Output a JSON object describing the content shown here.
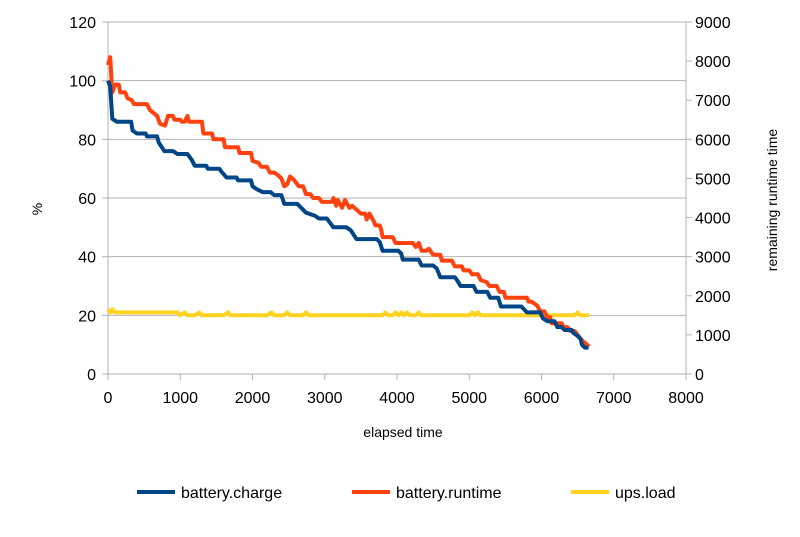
{
  "chart_data": {
    "type": "line",
    "xlabel": "elapsed time",
    "ylabel_left": "%",
    "ylabel_right": "remaining runtime time",
    "xlim": [
      0,
      8000
    ],
    "ylim_left": [
      0,
      120
    ],
    "ylim_right": [
      0,
      9000
    ],
    "x_ticks": [
      0,
      1000,
      2000,
      3000,
      4000,
      5000,
      6000,
      7000,
      8000
    ],
    "y_left_ticks": [
      0,
      20,
      40,
      60,
      80,
      100,
      120
    ],
    "y_right_ticks": [
      0,
      1000,
      2000,
      3000,
      4000,
      5000,
      6000,
      7000,
      8000,
      9000
    ],
    "grid": "horizontal",
    "legend_position": "bottom",
    "series": [
      {
        "name": "battery.charge",
        "axis": "left",
        "color": "#004586",
        "points": [
          [
            0,
            100
          ],
          [
            30,
            98
          ],
          [
            60,
            87
          ],
          [
            120,
            86
          ],
          [
            200,
            86
          ],
          [
            320,
            86
          ],
          [
            340,
            83
          ],
          [
            400,
            82
          ],
          [
            520,
            82
          ],
          [
            540,
            81
          ],
          [
            680,
            81
          ],
          [
            700,
            79
          ],
          [
            780,
            76
          ],
          [
            900,
            76
          ],
          [
            960,
            75
          ],
          [
            1100,
            75
          ],
          [
            1160,
            73
          ],
          [
            1200,
            71
          ],
          [
            1360,
            71
          ],
          [
            1380,
            70
          ],
          [
            1540,
            70
          ],
          [
            1570,
            69
          ],
          [
            1640,
            67
          ],
          [
            1780,
            67
          ],
          [
            1800,
            66
          ],
          [
            1980,
            66
          ],
          [
            2000,
            64
          ],
          [
            2060,
            63
          ],
          [
            2140,
            62
          ],
          [
            2250,
            62
          ],
          [
            2300,
            61
          ],
          [
            2400,
            61
          ],
          [
            2440,
            58
          ],
          [
            2620,
            58
          ],
          [
            2660,
            57
          ],
          [
            2740,
            55
          ],
          [
            2860,
            54
          ],
          [
            2920,
            53
          ],
          [
            3030,
            53
          ],
          [
            3060,
            52
          ],
          [
            3120,
            50
          ],
          [
            3300,
            50
          ],
          [
            3360,
            49
          ],
          [
            3440,
            46
          ],
          [
            3720,
            46
          ],
          [
            3760,
            45
          ],
          [
            3800,
            42
          ],
          [
            4020,
            42
          ],
          [
            4060,
            41
          ],
          [
            4080,
            39
          ],
          [
            4300,
            39
          ],
          [
            4340,
            37
          ],
          [
            4500,
            37
          ],
          [
            4550,
            36
          ],
          [
            4600,
            33
          ],
          [
            4800,
            33
          ],
          [
            4830,
            32
          ],
          [
            4880,
            30
          ],
          [
            5060,
            30
          ],
          [
            5100,
            28
          ],
          [
            5250,
            28
          ],
          [
            5290,
            26
          ],
          [
            5400,
            26
          ],
          [
            5440,
            23
          ],
          [
            5720,
            23
          ],
          [
            5760,
            22
          ],
          [
            5800,
            21
          ],
          [
            5980,
            21
          ],
          [
            6020,
            19
          ],
          [
            6080,
            18
          ],
          [
            6180,
            18
          ],
          [
            6220,
            16
          ],
          [
            6280,
            16
          ],
          [
            6320,
            15
          ],
          [
            6420,
            15
          ],
          [
            6440,
            14
          ],
          [
            6500,
            13
          ],
          [
            6540,
            12
          ],
          [
            6560,
            10
          ],
          [
            6600,
            9
          ],
          [
            6650,
            9
          ]
        ]
      },
      {
        "name": "battery.runtime",
        "axis": "right",
        "color": "#ff420e",
        "points": [
          [
            0,
            7900
          ],
          [
            30,
            8100
          ],
          [
            60,
            7200
          ],
          [
            100,
            7400
          ],
          [
            150,
            7400
          ],
          [
            170,
            7200
          ],
          [
            240,
            7200
          ],
          [
            270,
            7050
          ],
          [
            330,
            7000
          ],
          [
            360,
            6900
          ],
          [
            540,
            6900
          ],
          [
            580,
            6750
          ],
          [
            680,
            6600
          ],
          [
            720,
            6400
          ],
          [
            790,
            6350
          ],
          [
            830,
            6600
          ],
          [
            900,
            6600
          ],
          [
            920,
            6500
          ],
          [
            1000,
            6500
          ],
          [
            1020,
            6450
          ],
          [
            1060,
            6450
          ],
          [
            1100,
            6600
          ],
          [
            1120,
            6450
          ],
          [
            1300,
            6450
          ],
          [
            1320,
            6150
          ],
          [
            1440,
            6150
          ],
          [
            1460,
            6000
          ],
          [
            1600,
            6000
          ],
          [
            1620,
            5800
          ],
          [
            1800,
            5800
          ],
          [
            1820,
            5650
          ],
          [
            1980,
            5650
          ],
          [
            2000,
            5450
          ],
          [
            2080,
            5400
          ],
          [
            2120,
            5300
          ],
          [
            2200,
            5300
          ],
          [
            2240,
            5150
          ],
          [
            2300,
            5150
          ],
          [
            2340,
            5100
          ],
          [
            2400,
            5000
          ],
          [
            2440,
            4800
          ],
          [
            2480,
            4850
          ],
          [
            2520,
            5050
          ],
          [
            2580,
            4950
          ],
          [
            2640,
            4800
          ],
          [
            2700,
            4800
          ],
          [
            2740,
            4600
          ],
          [
            2800,
            4600
          ],
          [
            2840,
            4500
          ],
          [
            2920,
            4500
          ],
          [
            2960,
            4400
          ],
          [
            3100,
            4400
          ],
          [
            3120,
            4500
          ],
          [
            3160,
            4300
          ],
          [
            3180,
            4450
          ],
          [
            3240,
            4250
          ],
          [
            3280,
            4450
          ],
          [
            3340,
            4250
          ],
          [
            3380,
            4300
          ],
          [
            3440,
            4200
          ],
          [
            3500,
            4100
          ],
          [
            3560,
            4100
          ],
          [
            3580,
            3950
          ],
          [
            3620,
            4100
          ],
          [
            3680,
            3900
          ],
          [
            3700,
            3800
          ],
          [
            3760,
            3800
          ],
          [
            3780,
            3700
          ],
          [
            3800,
            3500
          ],
          [
            3940,
            3500
          ],
          [
            3980,
            3350
          ],
          [
            4220,
            3350
          ],
          [
            4260,
            3250
          ],
          [
            4300,
            3350
          ],
          [
            4340,
            3150
          ],
          [
            4400,
            3150
          ],
          [
            4440,
            3200
          ],
          [
            4500,
            3050
          ],
          [
            4600,
            3050
          ],
          [
            4620,
            2900
          ],
          [
            4760,
            2900
          ],
          [
            4800,
            2750
          ],
          [
            4900,
            2750
          ],
          [
            4920,
            2650
          ],
          [
            5000,
            2650
          ],
          [
            5040,
            2550
          ],
          [
            5120,
            2550
          ],
          [
            5160,
            2400
          ],
          [
            5240,
            2350
          ],
          [
            5280,
            2250
          ],
          [
            5380,
            2250
          ],
          [
            5420,
            2100
          ],
          [
            5480,
            2100
          ],
          [
            5500,
            1950
          ],
          [
            5800,
            1950
          ],
          [
            5820,
            1850
          ],
          [
            5860,
            1850
          ],
          [
            5900,
            1800
          ],
          [
            5940,
            1750
          ],
          [
            5980,
            1600
          ],
          [
            6040,
            1600
          ],
          [
            6080,
            1450
          ],
          [
            6120,
            1450
          ],
          [
            6140,
            1300
          ],
          [
            6280,
            1300
          ],
          [
            6300,
            1200
          ],
          [
            6360,
            1200
          ],
          [
            6400,
            1100
          ],
          [
            6460,
            1100
          ],
          [
            6500,
            1000
          ],
          [
            6540,
            900
          ],
          [
            6600,
            800
          ],
          [
            6660,
            700
          ]
        ]
      },
      {
        "name": "ups.load",
        "axis": "left",
        "color": "#ffd320",
        "points": [
          [
            0,
            22
          ],
          [
            30,
            21
          ],
          [
            60,
            22
          ],
          [
            100,
            21
          ],
          [
            200,
            21
          ],
          [
            400,
            21
          ],
          [
            600,
            21
          ],
          [
            800,
            21
          ],
          [
            960,
            21
          ],
          [
            1000,
            20
          ],
          [
            1060,
            21
          ],
          [
            1100,
            20
          ],
          [
            1200,
            20
          ],
          [
            1260,
            21
          ],
          [
            1300,
            20
          ],
          [
            1600,
            20
          ],
          [
            1660,
            21
          ],
          [
            1700,
            20
          ],
          [
            2200,
            20
          ],
          [
            2260,
            21
          ],
          [
            2300,
            20
          ],
          [
            2440,
            20
          ],
          [
            2480,
            21
          ],
          [
            2520,
            20
          ],
          [
            2700,
            20
          ],
          [
            2740,
            21
          ],
          [
            2780,
            20
          ],
          [
            3800,
            20
          ],
          [
            3840,
            21
          ],
          [
            3880,
            20
          ],
          [
            3940,
            20
          ],
          [
            3980,
            21
          ],
          [
            4020,
            20
          ],
          [
            4060,
            21
          ],
          [
            4100,
            20
          ],
          [
            4140,
            21
          ],
          [
            4180,
            20
          ],
          [
            4260,
            20
          ],
          [
            4300,
            21
          ],
          [
            4340,
            20
          ],
          [
            5000,
            20
          ],
          [
            5040,
            21
          ],
          [
            5080,
            20
          ],
          [
            5120,
            21
          ],
          [
            5160,
            20
          ],
          [
            6000,
            20
          ],
          [
            6040,
            21
          ],
          [
            6060,
            20
          ],
          [
            6460,
            20
          ],
          [
            6500,
            21
          ],
          [
            6540,
            20
          ],
          [
            6660,
            20
          ]
        ]
      }
    ]
  }
}
